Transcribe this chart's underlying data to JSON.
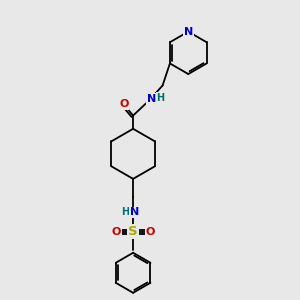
{
  "bg_color": "#e8e8e8",
  "bond_color": "#000000",
  "N_color": "#0000cc",
  "O_color": "#cc0000",
  "S_color": "#aaaa00",
  "H_color": "#007070",
  "font_size": 7.5,
  "line_width": 1.3,
  "figsize": [
    3.0,
    3.0
  ],
  "dpi": 100,
  "xlim": [
    0,
    10
  ],
  "ylim": [
    0,
    10
  ]
}
